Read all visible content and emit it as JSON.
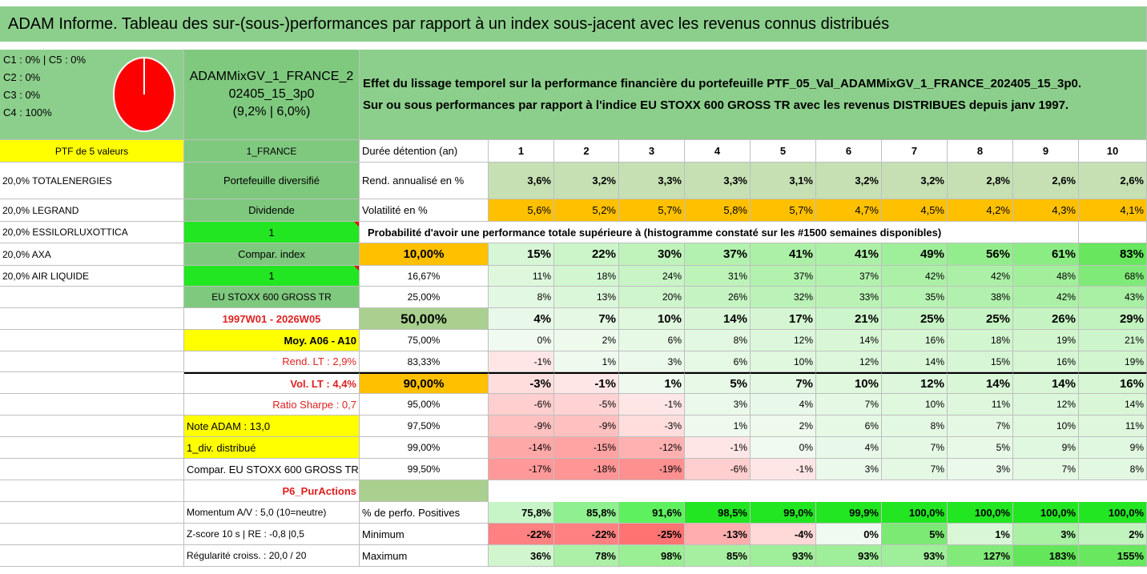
{
  "title": "ADAM Informe. Tableau des sur-(sous-)performances par rapport à un index sous-jacent avec les revenus connus distribués",
  "cats": [
    "C1 : 0% | C5 : 0%",
    "C2 : 0%",
    "C3 : 0%",
    "C4 : 100%"
  ],
  "portfolio_name_l1": "ADAMMixGV_1_FRANCE_2",
  "portfolio_name_l2": "02405_15_3p0",
  "portfolio_name_l3": "(9,2% | 6,0%)",
  "description_l1": "Effet du lissage temporel sur la performance financière du portefeuille PTF_05_Val_ADAMMixGV_1_FRANCE_202405_15_3p0.",
  "description_l2": "Sur ou sous performances par rapport à l'indice EU STOXX 600 GROSS TR avec les revenus DISTRIBUES depuis janv 1997.",
  "pie": {
    "label": "C4",
    "value": 100,
    "color": "#ff0000"
  },
  "left_col": [
    "PTF de 5 valeurs",
    "20,0% TOTALENERGIES",
    "20,0% LEGRAND",
    "20,0% ESSILORLUXOTTICA",
    "20,0% AXA",
    "20,0% AIR LIQUIDE",
    "",
    "",
    "",
    "",
    "",
    "",
    "",
    "",
    "",
    "",
    "",
    "",
    ""
  ],
  "mid_col": [
    "1_FRANCE",
    "Portefeuille diversifié",
    "Dividende",
    "1",
    "Compar. index",
    "1",
    "EU STOXX 600 GROSS TR",
    "1997W01 - 2026W05",
    "Moy. A06 - A10",
    "Rend. LT : 2,9%",
    "Vol. LT : 4,4%",
    "Ratio Sharpe : 0,7",
    "Note ADAM : 13,0",
    "1_div. distribué",
    "Compar. EU STOXX 600 GROSS TR",
    "P6_PurActions",
    "Momentum A/V : 5,0 (10=neutre)",
    "Z-score 10 s | RE : -0,8 |0,5",
    "Régularité croiss. : 20,0 / 20"
  ],
  "header_label": "Durée détention (an)",
  "years": [
    "1",
    "2",
    "3",
    "4",
    "5",
    "6",
    "7",
    "8",
    "9",
    "10"
  ],
  "rend_label": "Rend. annualisé en %",
  "rend": [
    "3,6%",
    "3,2%",
    "3,3%",
    "3,3%",
    "3,1%",
    "3,2%",
    "3,2%",
    "2,8%",
    "2,6%",
    "2,6%"
  ],
  "vol_label": "Volatilité en %",
  "vol": [
    "5,6%",
    "5,2%",
    "5,7%",
    "5,8%",
    "5,7%",
    "4,7%",
    "4,5%",
    "4,2%",
    "4,3%",
    "4,1%"
  ],
  "prob_title": "Probabilité d'avoir une performance totale supérieure à (histogramme constaté sur les #1500 semaines disponibles)",
  "quantiles": [
    {
      "p": "10,00%",
      "v": [
        "15%",
        "22%",
        "30%",
        "37%",
        "41%",
        "41%",
        "49%",
        "56%",
        "61%",
        "83%"
      ]
    },
    {
      "p": "16,67%",
      "v": [
        "11%",
        "18%",
        "24%",
        "31%",
        "37%",
        "37%",
        "42%",
        "42%",
        "48%",
        "68%"
      ]
    },
    {
      "p": "25,00%",
      "v": [
        "8%",
        "13%",
        "20%",
        "26%",
        "32%",
        "33%",
        "35%",
        "38%",
        "42%",
        "43%"
      ]
    },
    {
      "p": "50,00%",
      "v": [
        "4%",
        "7%",
        "10%",
        "14%",
        "17%",
        "21%",
        "25%",
        "25%",
        "26%",
        "29%"
      ]
    },
    {
      "p": "75,00%",
      "v": [
        "0%",
        "2%",
        "6%",
        "8%",
        "12%",
        "14%",
        "16%",
        "18%",
        "19%",
        "21%"
      ]
    },
    {
      "p": "83,33%",
      "v": [
        "-1%",
        "1%",
        "3%",
        "6%",
        "10%",
        "12%",
        "14%",
        "15%",
        "16%",
        "19%"
      ]
    },
    {
      "p": "90,00%",
      "v": [
        "-3%",
        "-1%",
        "1%",
        "5%",
        "7%",
        "10%",
        "12%",
        "14%",
        "14%",
        "16%"
      ]
    },
    {
      "p": "95,00%",
      "v": [
        "-6%",
        "-5%",
        "-1%",
        "3%",
        "4%",
        "7%",
        "10%",
        "11%",
        "12%",
        "14%"
      ]
    },
    {
      "p": "97,50%",
      "v": [
        "-9%",
        "-9%",
        "-3%",
        "1%",
        "2%",
        "6%",
        "8%",
        "7%",
        "10%",
        "11%"
      ]
    },
    {
      "p": "99,00%",
      "v": [
        "-14%",
        "-15%",
        "-12%",
        "-1%",
        "0%",
        "4%",
        "7%",
        "5%",
        "9%",
        "9%"
      ]
    },
    {
      "p": "99,50%",
      "v": [
        "-17%",
        "-18%",
        "-19%",
        "-6%",
        "-1%",
        "3%",
        "7%",
        "3%",
        "7%",
        "8%"
      ]
    }
  ],
  "pos_label": "% de perfo. Positives",
  "pos": [
    "75,8%",
    "85,8%",
    "91,6%",
    "98,5%",
    "99,0%",
    "99,9%",
    "100,0%",
    "100,0%",
    "100,0%",
    "100,0%"
  ],
  "min_label": "Minimum",
  "min": [
    "-22%",
    "-22%",
    "-25%",
    "-13%",
    "-4%",
    "0%",
    "5%",
    "1%",
    "3%",
    "2%"
  ],
  "max_label": "Maximum",
  "max": [
    "36%",
    "78%",
    "98%",
    "85%",
    "93%",
    "93%",
    "93%",
    "127%",
    "183%",
    "155%"
  ]
}
